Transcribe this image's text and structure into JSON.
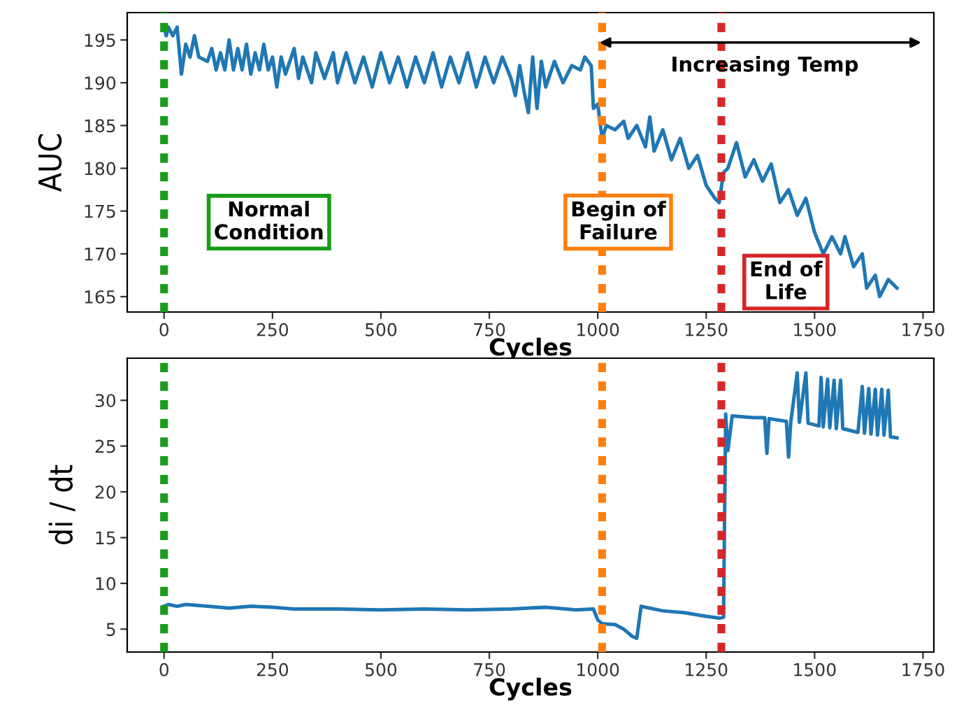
{
  "chart_data": [
    {
      "type": "line",
      "xlabel": "Cycles",
      "ylabel": "AUC",
      "xlim": [
        -85,
        1775
      ],
      "ylim": [
        163.2,
        198.2
      ],
      "xticks": [
        0,
        250,
        500,
        750,
        1000,
        1250,
        1500,
        1750
      ],
      "yticks": [
        165,
        170,
        175,
        180,
        185,
        190,
        195
      ],
      "grid": false,
      "series": [
        {
          "color": "#1f77b4",
          "x": [
            0,
            5,
            10,
            20,
            30,
            40,
            50,
            60,
            70,
            80,
            100,
            110,
            120,
            130,
            140,
            150,
            160,
            170,
            180,
            190,
            200,
            210,
            220,
            230,
            240,
            250,
            260,
            270,
            280,
            300,
            310,
            320,
            340,
            350,
            370,
            390,
            400,
            420,
            440,
            460,
            480,
            500,
            520,
            540,
            560,
            580,
            600,
            620,
            640,
            660,
            680,
            700,
            720,
            740,
            760,
            780,
            800,
            810,
            820,
            830,
            840,
            850,
            860,
            870,
            880,
            900,
            920,
            940,
            960,
            970,
            985,
            990,
            1000,
            1010,
            1020,
            1040,
            1060,
            1070,
            1090,
            1110,
            1120,
            1130,
            1150,
            1170,
            1190,
            1210,
            1230,
            1250,
            1270,
            1280,
            1290,
            1300,
            1320,
            1340,
            1360,
            1380,
            1400,
            1420,
            1440,
            1460,
            1480,
            1500,
            1520,
            1540,
            1560,
            1570,
            1590,
            1610,
            1620,
            1640,
            1650,
            1670,
            1690
          ],
          "values": [
            196.5,
            195.5,
            196.5,
            195.5,
            196.5,
            191,
            194.5,
            193,
            195.5,
            193,
            192.5,
            194,
            191.5,
            193.5,
            191.5,
            195,
            191.5,
            194,
            191.5,
            194.5,
            191,
            193.5,
            191.5,
            194.5,
            191.5,
            193,
            189.5,
            193,
            191,
            194,
            190.5,
            193,
            190,
            193.5,
            190.5,
            193.5,
            190,
            193.5,
            190,
            193,
            189.5,
            193.5,
            190,
            193,
            189.5,
            193,
            190,
            193.5,
            189.5,
            193,
            190,
            193.5,
            189.5,
            193,
            190,
            193,
            190.5,
            188.5,
            192,
            189,
            186.5,
            193,
            187,
            192.5,
            189.5,
            192.5,
            190,
            192,
            191.5,
            193,
            192,
            187,
            187.5,
            183.5,
            185,
            184.5,
            185.5,
            183.5,
            185,
            182.5,
            186,
            182,
            184.5,
            181,
            183.5,
            180,
            181.5,
            178,
            176.5,
            176,
            179.5,
            180,
            183,
            179,
            181,
            178.5,
            180.5,
            176,
            177.5,
            174.5,
            176.5,
            172.5,
            170,
            172,
            170,
            172,
            168.5,
            170,
            166,
            167.5,
            165,
            167,
            166
          ]
        }
      ],
      "ref_lines": [
        {
          "axis": "x",
          "value": 0,
          "label": "Normal Condition",
          "color": "#1a9c1a",
          "line_style": "dotted"
        },
        {
          "axis": "x",
          "value": 1010,
          "label": "Begin of Failure",
          "color": "#ff7f0e",
          "line_style": "dotted"
        },
        {
          "axis": "x",
          "value": 1285,
          "label": "End of Life",
          "color": "#d62728",
          "line_style": "dotted"
        }
      ],
      "annotations": [
        "Increasing Temp"
      ]
    },
    {
      "type": "line",
      "xlabel": "Cycles",
      "ylabel": "di / dt",
      "xlim": [
        -85,
        1775
      ],
      "ylim": [
        2.5,
        34.6
      ],
      "xticks": [
        0,
        250,
        500,
        750,
        1000,
        1250,
        1500,
        1750
      ],
      "yticks": [
        5,
        10,
        15,
        20,
        25,
        30
      ],
      "grid": false,
      "series": [
        {
          "color": "#1f77b4",
          "x": [
            0,
            10,
            30,
            50,
            100,
            150,
            200,
            250,
            300,
            400,
            500,
            600,
            700,
            800,
            880,
            950,
            990,
            1000,
            1010,
            1040,
            1060,
            1080,
            1090,
            1100,
            1120,
            1150,
            1200,
            1250,
            1280,
            1290,
            1295,
            1300,
            1310,
            1360,
            1385,
            1390,
            1395,
            1435,
            1440,
            1445,
            1460,
            1465,
            1480,
            1485,
            1510,
            1515,
            1520,
            1530,
            1535,
            1545,
            1550,
            1560,
            1565,
            1600,
            1610,
            1615,
            1625,
            1630,
            1640,
            1645,
            1655,
            1660,
            1670,
            1675,
            1690
          ],
          "values": [
            7.5,
            7.7,
            7.5,
            7.7,
            7.5,
            7.3,
            7.5,
            7.4,
            7.2,
            7.2,
            7.1,
            7.2,
            7.1,
            7.2,
            7.4,
            7.1,
            7.2,
            6,
            5.6,
            5.5,
            5,
            4.2,
            4,
            7.5,
            7.3,
            7,
            6.8,
            6.4,
            6.2,
            6.3,
            28.5,
            24.5,
            28.3,
            28.1,
            28.1,
            24.2,
            28,
            27.7,
            23.8,
            27.6,
            33,
            27.6,
            33,
            27.5,
            27.2,
            32.5,
            27.1,
            32.3,
            27,
            32.2,
            26.9,
            32.2,
            26.9,
            26.5,
            31.5,
            26.4,
            31.3,
            26.3,
            31.2,
            26.2,
            31.2,
            26.2,
            31.1,
            26,
            25.9
          ]
        }
      ],
      "ref_lines": [
        {
          "axis": "x",
          "value": 0,
          "color": "#1a9c1a",
          "line_style": "dotted"
        },
        {
          "axis": "x",
          "value": 1010,
          "color": "#ff7f0e",
          "line_style": "dotted"
        },
        {
          "axis": "x",
          "value": 1285,
          "color": "#d62728",
          "line_style": "dotted"
        }
      ]
    }
  ]
}
